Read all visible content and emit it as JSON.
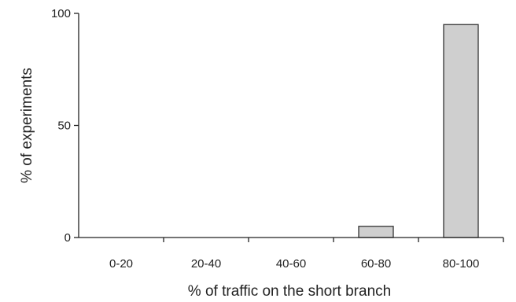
{
  "chart_data": {
    "type": "bar",
    "title": "",
    "xlabel": "% of traffic on the short branch",
    "ylabel": "% of experiments",
    "categories": [
      "0-20",
      "20-40",
      "40-60",
      "60-80",
      "80-100"
    ],
    "values": [
      0,
      0,
      0,
      5,
      95
    ],
    "ylim": [
      0,
      100
    ],
    "yticks": [
      "0",
      "50",
      "100"
    ],
    "grid": false,
    "legend": "none",
    "colors": {
      "bar_fill": "#cfcfcf",
      "bar_stroke": "#333333",
      "axis": "#222222"
    }
  }
}
